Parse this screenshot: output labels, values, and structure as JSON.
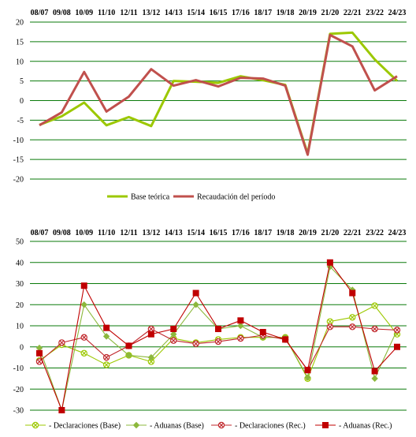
{
  "colors": {
    "grid": "#0a7a0a",
    "base_green": "#9cc800",
    "recaud_red": "#c0504d",
    "decl_base": "#9cc800",
    "adu_base": "#8cb83c",
    "decl_rec": "#c0282d",
    "adu_rec": "#c00000"
  },
  "chart_data": [
    {
      "type": "line",
      "categories": [
        "08/07",
        "09/08",
        "10/09",
        "11/10",
        "12/11",
        "13/12",
        "14/13",
        "15/14",
        "16/15",
        "17/16",
        "18/17",
        "19/18",
        "20/19",
        "21/20",
        "22/21",
        "23/22",
        "24/23"
      ],
      "ylim": [
        -20,
        20
      ],
      "yticks": [
        20,
        15,
        10,
        5,
        0,
        -5,
        -10,
        -15,
        -20
      ],
      "grid": true,
      "legend_position": "bottom",
      "series": [
        {
          "name": "Base teórica",
          "color_key": "base_green",
          "values": [
            -6.2,
            -4,
            -0.5,
            -6.3,
            -4.2,
            -6.5,
            5,
            4.8,
            4.5,
            6.2,
            5.2,
            4,
            -13.5,
            17,
            17.3,
            10.5,
            5
          ]
        },
        {
          "name": "Recaudación del período",
          "color_key": "recaud_red",
          "values": [
            -6.3,
            -3,
            7.3,
            -2.8,
            1,
            8,
            3.8,
            5.2,
            3.6,
            5.8,
            5.6,
            3.8,
            -13.8,
            16.7,
            13.8,
            2.6,
            6.2
          ]
        }
      ]
    },
    {
      "type": "line",
      "categories": [
        "08/07",
        "09/08",
        "10/09",
        "11/10",
        "12/11",
        "13/12",
        "14/13",
        "15/14",
        "16/15",
        "17/16",
        "18/17",
        "19/18",
        "20/19",
        "21/20",
        "22/21",
        "23/22",
        "24/23"
      ],
      "ylim": [
        -30,
        50
      ],
      "yticks": [
        50,
        40,
        30,
        20,
        10,
        0,
        -10,
        -20,
        -30
      ],
      "grid": true,
      "legend_position": "bottom",
      "series": [
        {
          "name": "- Declaraciones (Base)",
          "color_key": "decl_base",
          "marker": "circle-x",
          "values": [
            -6.5,
            1,
            -3,
            -8.5,
            -4,
            -7,
            4,
            2,
            3.5,
            4.5,
            4.5,
            4.5,
            -15,
            12,
            14,
            19.5,
            6
          ]
        },
        {
          "name": "- Aduanas (Base)",
          "color_key": "adu_base",
          "marker": "diamond",
          "values": [
            -0.5,
            -30,
            20,
            5,
            -4,
            -5,
            6,
            20,
            8.5,
            10,
            4.5,
            4.5,
            -14.5,
            38,
            27,
            -15,
            8
          ]
        },
        {
          "name": "- Declaraciones (Rec.)",
          "color_key": "decl_rec",
          "marker": "circle-x",
          "values": [
            -7,
            2,
            4.5,
            -5,
            0.5,
            8.5,
            3,
            1.5,
            2.5,
            4,
            5.5,
            3.5,
            -11,
            9.5,
            9.5,
            8.5,
            8
          ]
        },
        {
          "name": "- Aduanas (Rec.)",
          "color_key": "adu_rec",
          "marker": "square",
          "values": [
            -3,
            -30,
            29,
            9,
            0.5,
            6,
            8.5,
            25.5,
            8.5,
            12.5,
            7,
            3.5,
            -11,
            40,
            25.5,
            -11.5,
            0
          ]
        }
      ]
    }
  ]
}
